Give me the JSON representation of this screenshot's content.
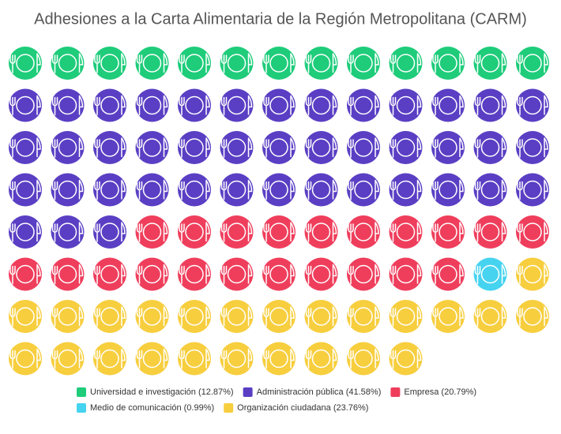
{
  "chart_data": {
    "type": "waffle",
    "title": "Adhesiones a la Carta Alimentaria de la Región Metropolitana (CARM)",
    "series": [
      {
        "name": "Universidad e investigación (12.87%)",
        "color": "#1ecc7a",
        "values": [
          12.87
        ]
      },
      {
        "name": "Administración pública (41.58%)",
        "color": "#5a3fc4",
        "values": [
          41.58
        ]
      },
      {
        "name": "Empresa (20.79%)",
        "color": "#ef3e5c",
        "values": [
          20.79
        ]
      },
      {
        "name": "Medio de comunicación (0.99%)",
        "color": "#45d3f0",
        "values": [
          0.99
        ]
      },
      {
        "name": "Organización ciudadana (23.76%)",
        "color": "#f7ce3e",
        "values": [
          23.76
        ]
      }
    ]
  }
}
